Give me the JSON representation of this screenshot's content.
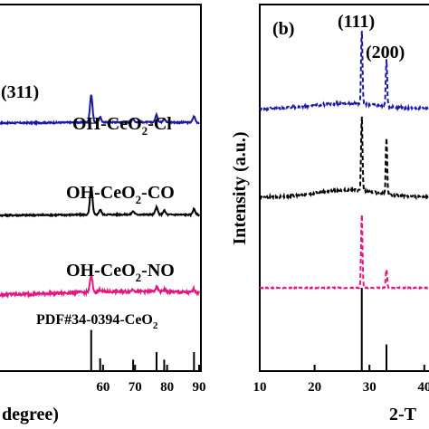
{
  "chart_data": [
    {
      "type": "line",
      "panel": "left",
      "xlabel_visible": "degree)",
      "x_tick_labels": [
        "60",
        "70",
        "80",
        "90"
      ],
      "xlim": [
        25,
        90
      ],
      "peak_label": "(311)",
      "series": [
        {
          "name": "OH-CeO2-Cl",
          "label_main": "OH-CeO",
          "label_sub": "2",
          "label_tail": "-Cl",
          "color": "#1a1aa6",
          "style": "solid",
          "peaks": [
            {
              "x": 56.3,
              "h": 0.85
            },
            {
              "x": 59.1,
              "h": 0.15
            },
            {
              "x": 69.4,
              "h": 0.1
            },
            {
              "x": 76.7,
              "h": 0.22
            },
            {
              "x": 79.1,
              "h": 0.12
            },
            {
              "x": 88.4,
              "h": 0.18
            }
          ]
        },
        {
          "name": "OH-CeO2-CO",
          "label_main": "OH-CeO",
          "label_sub": "2",
          "label_tail": "-CO",
          "color": "#000000",
          "style": "solid",
          "peaks": [
            {
              "x": 56.3,
              "h": 0.85
            },
            {
              "x": 59.1,
              "h": 0.15
            },
            {
              "x": 69.4,
              "h": 0.1
            },
            {
              "x": 76.7,
              "h": 0.22
            },
            {
              "x": 79.1,
              "h": 0.12
            },
            {
              "x": 88.4,
              "h": 0.18
            }
          ]
        },
        {
          "name": "OH-CeO2-NO",
          "label_main": "OH-CeO",
          "label_sub": "2",
          "label_tail": "-NO",
          "color": "#e5177f",
          "style": "solid",
          "peaks": [
            {
              "x": 56.3,
              "h": 0.7
            },
            {
              "x": 59.1,
              "h": 0.1
            },
            {
              "x": 69.4,
              "h": 0.1
            },
            {
              "x": 76.7,
              "h": 0.18
            },
            {
              "x": 79.1,
              "h": 0.1
            },
            {
              "x": 88.4,
              "h": 0.15
            }
          ]
        }
      ],
      "reference": {
        "label_main": "PDF#34-0394-CeO",
        "label_sub": "2",
        "lines": [
          {
            "x": 56.3,
            "h": 0.65
          },
          {
            "x": 59.1,
            "h": 0.2
          },
          {
            "x": 69.4,
            "h": 0.18
          },
          {
            "x": 76.7,
            "h": 0.3
          },
          {
            "x": 79.1,
            "h": 0.18
          },
          {
            "x": 88.4,
            "h": 0.3
          }
        ]
      }
    },
    {
      "type": "line",
      "panel": "right",
      "panel_label": "(b)",
      "ylabel": "Intensity (a.u.)",
      "xlabel_visible": "2-T",
      "x_tick_labels": [
        "10",
        "20",
        "30",
        "40"
      ],
      "xlim": [
        10,
        43
      ],
      "peak_labels": [
        "(111)",
        "(200)"
      ],
      "series": [
        {
          "color": "#1a1aa6",
          "style": "dashed",
          "peaks": [
            {
              "x": 28.6,
              "h": 1.0
            },
            {
              "x": 33.1,
              "h": 0.62
            }
          ]
        },
        {
          "color": "#000000",
          "style": "dashed",
          "peaks": [
            {
              "x": 28.6,
              "h": 1.0
            },
            {
              "x": 33.1,
              "h": 0.75
            }
          ]
        },
        {
          "color": "#e5177f",
          "style": "dashed",
          "peaks": [
            {
              "x": 28.6,
              "h": 1.0
            },
            {
              "x": 33.1,
              "h": 0.25
            }
          ]
        }
      ],
      "reference": {
        "lines": [
          {
            "x": 28.6,
            "h": 1.0
          },
          {
            "x": 33.1,
            "h": 0.32
          }
        ]
      }
    }
  ]
}
